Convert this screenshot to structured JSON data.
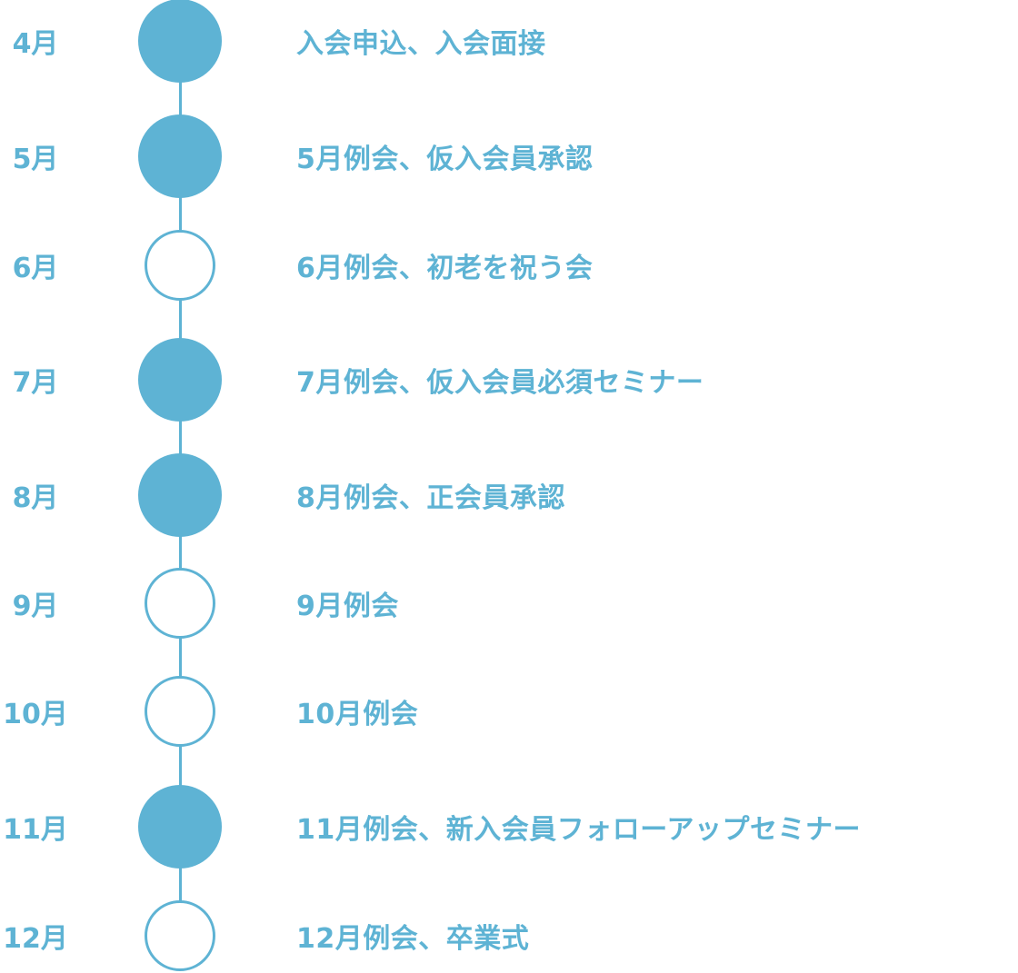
{
  "accent_color": "#5eb3d4",
  "timeline": [
    {
      "month": "4月",
      "event": "入会申込、入会面接",
      "filled": true
    },
    {
      "month": "5月",
      "event": "5月例会、仮入会員承認",
      "filled": true
    },
    {
      "month": "6月",
      "event": "6月例会、初老を祝う会",
      "filled": false
    },
    {
      "month": "7月",
      "event": "7月例会、仮入会員必須セミナー",
      "filled": true
    },
    {
      "month": "8月",
      "event": "8月例会、正会員承認",
      "filled": true
    },
    {
      "month": "9月",
      "event": "9月例会",
      "filled": false
    },
    {
      "month": "10月",
      "event": "10月例会",
      "filled": false
    },
    {
      "month": "11月",
      "event": "11月例会、新入会員フォローアップセミナー",
      "filled": true
    },
    {
      "month": "12月",
      "event": "12月例会、卒業式",
      "filled": false
    }
  ]
}
